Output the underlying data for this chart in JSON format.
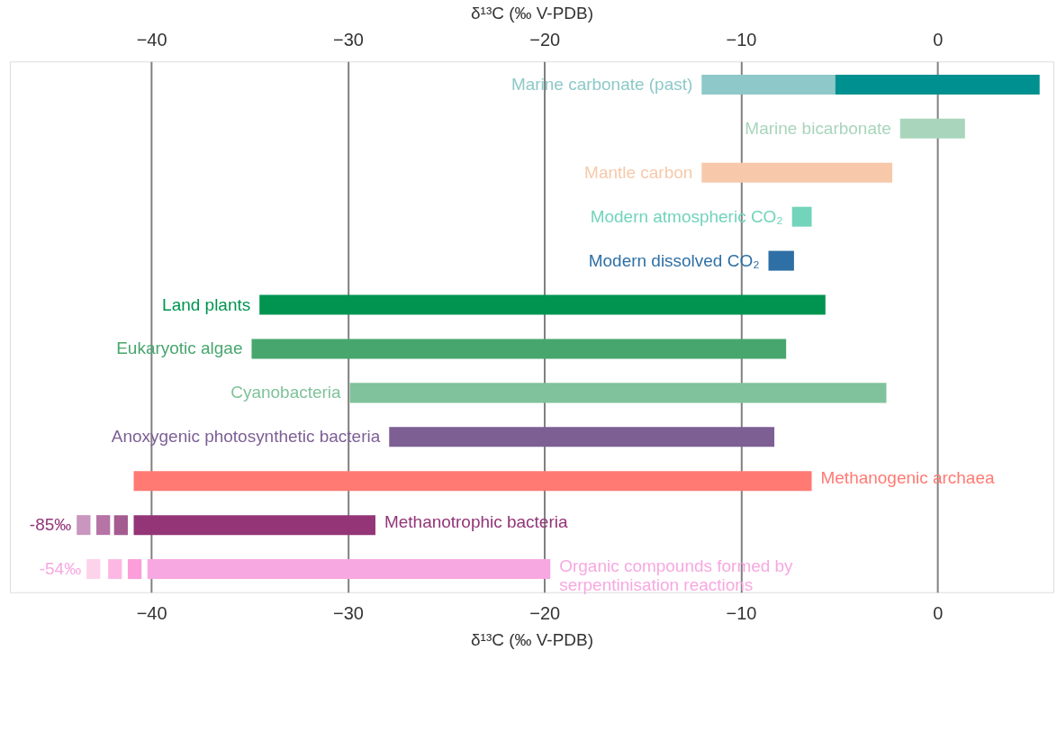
{
  "chart_data": {
    "type": "bar",
    "orientation": "horizontal",
    "xlabel": "δ¹³C (‰ V-PDB)",
    "x2label": "δ¹³C (‰ V-PDB)",
    "categories": [
      "Marine carbonate (past)",
      "Marine bicarbonate",
      "Mantle carbon",
      "Modern atmospheric CO₂",
      "Modern dissolved CO₂",
      "Land plants",
      "Eukaryotic algae",
      "Cyanobacteria",
      "Anoxygenic photosynthetic bacteria",
      "Methanogenic archaea",
      "Methanotrophic bacteria",
      "Organic compounds formed by serpentinisation reactions"
    ],
    "series": [
      {
        "colors": [
          "#8ec8c8",
          "#a8d5bb",
          "#f7c9aa",
          "#72d4bb",
          "#2e6fa5",
          "#009450",
          "#47a66e",
          "#80c29b",
          "#7d5f94",
          "#ff7a73",
          "#933577",
          "#f7a8e0"
        ],
        "base": [
          -12.0,
          -1.9,
          -12.0,
          -7.4,
          -8.6,
          -34.5,
          -34.9,
          -29.9,
          -27.9,
          -40.9,
          -40.9,
          -40.2
        ],
        "values": [
          6.8,
          3.3,
          9.7,
          1.0,
          1.3,
          28.8,
          27.2,
          27.3,
          19.6,
          34.5,
          12.3,
          20.5
        ]
      },
      {
        "colors": [
          "#009090",
          null,
          null,
          null,
          null,
          null,
          null,
          null,
          null,
          null,
          null,
          null
        ],
        "base": [
          -5.2,
          null,
          null,
          null,
          null,
          null,
          null,
          null,
          null,
          null,
          null,
          null
        ],
        "values": [
          10.4,
          null,
          null,
          null,
          null,
          null,
          null,
          null,
          null,
          null,
          null,
          null
        ]
      },
      {
        "colors": [
          null,
          null,
          null,
          null,
          null,
          null,
          null,
          null,
          null,
          null,
          "#c896be",
          "#fdd3ec"
        ],
        "base": [
          null,
          null,
          null,
          null,
          null,
          null,
          null,
          null,
          null,
          null,
          -43.8,
          -43.3
        ],
        "values": [
          null,
          null,
          null,
          null,
          null,
          null,
          null,
          null,
          null,
          null,
          0.7,
          0.7
        ]
      },
      {
        "colors": [
          null,
          null,
          null,
          null,
          null,
          null,
          null,
          null,
          null,
          null,
          "#b673a6",
          "#fcb8e3"
        ],
        "base": [
          null,
          null,
          null,
          null,
          null,
          null,
          null,
          null,
          null,
          null,
          -42.8,
          -42.2
        ],
        "values": [
          null,
          null,
          null,
          null,
          null,
          null,
          null,
          null,
          null,
          null,
          0.7,
          0.7
        ]
      },
      {
        "colors": [
          null,
          null,
          null,
          null,
          null,
          null,
          null,
          null,
          null,
          null,
          "#a35b90",
          "#fb9ed9"
        ],
        "base": [
          null,
          null,
          null,
          null,
          null,
          null,
          null,
          null,
          null,
          null,
          -41.9,
          -41.2
        ],
        "values": [
          null,
          null,
          null,
          null,
          null,
          null,
          null,
          null,
          null,
          null,
          0.7,
          0.7
        ]
      }
    ],
    "annotations": [
      {
        "text": "-85‰",
        "x": -43.8,
        "y": "Methanotrophic bacteria"
      },
      {
        "text": "-54‰",
        "x": -43.3,
        "y": "Organic compounds formed by serpentinisation reactions"
      }
    ],
    "xlim": [
      -47.2,
      5.9
    ],
    "xticks": [
      -40,
      -30,
      -20,
      -10,
      0
    ],
    "x2lim": [
      -47.2,
      5.9
    ],
    "x2ticks": [
      -40,
      -30,
      -20,
      -10,
      0
    ],
    "grid": "x",
    "legend": false,
    "tick_labels": "x"
  }
}
